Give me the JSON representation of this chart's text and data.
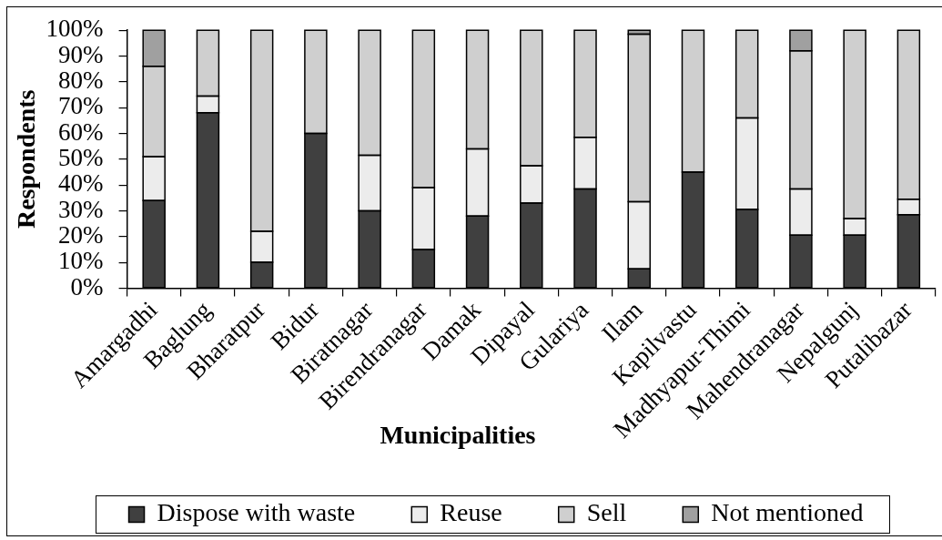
{
  "chart_data": {
    "type": "bar",
    "stacked": true,
    "xlabel": "Municipalities",
    "ylabel": "Respondents",
    "categories": [
      "Amargadhi",
      "Baglung",
      "Bharatpur",
      "Bidur",
      "Biratnagar",
      "Birendranagar",
      "Damak",
      "Dipayal",
      "Gulariya",
      "Ilam",
      "Kapilvastu",
      "Madhyapur-Thimi",
      "Mahendranagar",
      "Nepalgunj",
      "Putalibazar"
    ],
    "series": [
      {
        "name": "Dispose with waste",
        "color": "#404040",
        "values": [
          34,
          68,
          10,
          60,
          30,
          15,
          28,
          33,
          38.5,
          7.5,
          45,
          30.5,
          20.5,
          20.5,
          28.5
        ]
      },
      {
        "name": "Reuse",
        "color": "#ececec",
        "values": [
          17,
          6.5,
          12,
          null,
          21.5,
          24,
          26,
          14.5,
          20,
          26,
          null,
          35.5,
          18,
          6.5,
          6
        ]
      },
      {
        "name": "Sell",
        "color": "#cfcfcf",
        "values": [
          35,
          25.5,
          78,
          40,
          48.5,
          61,
          46,
          52.5,
          41.5,
          65,
          55,
          34,
          53.5,
          73,
          65.5
        ]
      },
      {
        "name": "Not mentioned",
        "color": "#a0a0a0",
        "values": [
          14,
          null,
          null,
          null,
          null,
          null,
          null,
          null,
          null,
          1.5,
          null,
          null,
          8,
          null,
          null
        ]
      }
    ],
    "ylim": [
      0,
      100
    ],
    "yticks": [
      {
        "value": 0,
        "label": "0%"
      },
      {
        "value": 10,
        "label": "10%"
      },
      {
        "value": 20,
        "label": "20%"
      },
      {
        "value": 30,
        "label": "30%"
      },
      {
        "value": 40,
        "label": "40%"
      },
      {
        "value": 50,
        "label": "50%"
      },
      {
        "value": 60,
        "label": "60%"
      },
      {
        "value": 70,
        "label": "70%"
      },
      {
        "value": 80,
        "label": "80%"
      },
      {
        "value": 90,
        "label": "90%"
      },
      {
        "value": 100,
        "label": "100%"
      }
    ],
    "grid": false,
    "legend": "bottom"
  }
}
